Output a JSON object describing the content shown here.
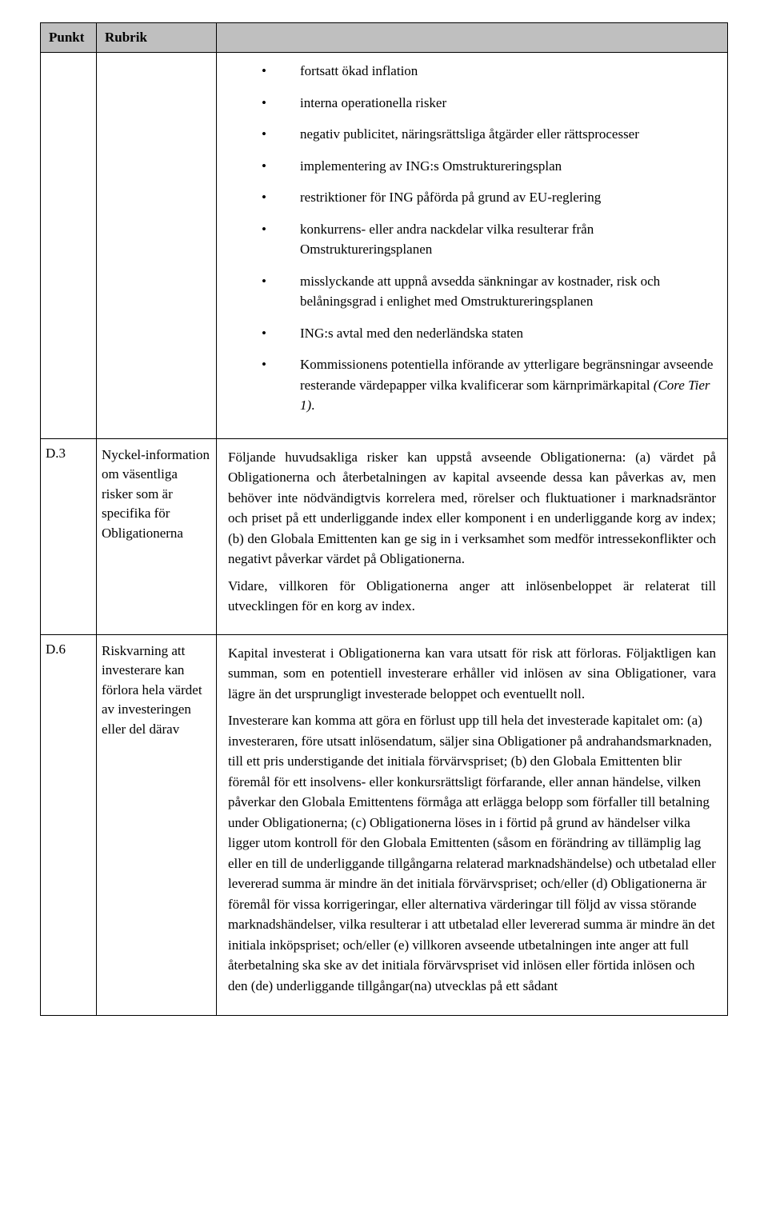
{
  "header": {
    "punkt": "Punkt",
    "rubrik": "Rubrik"
  },
  "row0": {
    "bullets": {
      "b0": "fortsatt ökad inflation",
      "b1": "interna operationella risker",
      "b2": "negativ publicitet, näringsrättsliga åtgärder eller rättsprocesser",
      "b3": "implementering av ING:s Omstruktureringsplan",
      "b4": "restriktioner för ING påförda på grund av EU-reglering",
      "b5": "konkurrens- eller andra nackdelar vilka resulterar från Omstruktureringsplanen",
      "b6": "misslyckande att uppnå avsedda sänkningar av kostnader, risk och belåningsgrad i enlighet med Omstruktureringsplanen",
      "b7": "ING:s avtal med den nederländska staten",
      "b8_text": "Kommissionens potentiella införande av ytterligare begränsningar avseende resterande värdepapper vilka kvalificerar som kärnprimärkapital ",
      "b8_italic": "(Core Tier 1)",
      "b8_tail": "."
    }
  },
  "row1": {
    "punkt": "D.3",
    "rubrik": "Nyckel-information om väsentliga risker som är specifika för Obligationerna",
    "p0": "Följande huvudsakliga risker kan uppstå avseende Obligationerna: (a) värdet på Obligationerna och återbetalningen av kapital avseende dessa kan påverkas av, men behöver inte nödvändigtvis korrelera med, rörelser och fluktuationer i marknadsräntor och priset på ett underliggande index eller komponent i en underliggande korg av index; (b) den Globala Emittenten kan ge sig in i verksamhet som medför intressekonflikter och negativt påverkar värdet på Obligationerna.",
    "p1": "Vidare, villkoren för Obligationerna anger att inlösenbeloppet är relaterat till utvecklingen för en korg av index."
  },
  "row2": {
    "punkt": "D.6",
    "rubrik": "Riskvarning att investerare kan förlora hela värdet av investeringen eller del därav",
    "p0": "Kapital investerat i Obligationerna kan vara utsatt för risk att förloras. Följaktligen kan summan, som en potentiell investerare erhåller vid inlösen av sina Obligationer, vara lägre än det ursprungligt investerade beloppet och eventuellt noll.",
    "p1": "Investerare kan komma att göra en förlust upp till hela det investerade kapitalet om: (a) investeraren, före utsatt inlösendatum, säljer sina Obligationer på andrahandsmarknaden, till ett pris understigande det initiala förvärvspriset; (b) den Globala Emittenten blir föremål för ett insolvens- eller konkursrättsligt förfarande, eller annan händelse, vilken påverkar den Globala Emittentens förmåga att erlägga belopp som förfaller till betalning under Obligationerna; (c) Obligationerna löses in i förtid på grund av händelser vilka ligger utom kontroll för den Globala Emittenten (såsom en förändring av tillämplig lag eller en till de underliggande tillgångarna relaterad marknadshändelse) och utbetalad eller levererad summa är mindre än det initiala förvärvspriset; och/eller (d) Obligationerna är föremål för vissa korrigeringar, eller alternativa värderingar till följd av vissa störande marknadshändelser, vilka resulterar i att utbetalad eller levererad summa är mindre än det initiala inköpspriset; och/eller (e) villkoren avseende utbetalningen inte anger att full återbetalning ska ske av det initiala förvärvspriset vid inlösen eller förtida inlösen och den (de) underliggande tillgångar(na) utvecklas på ett sådant"
  }
}
